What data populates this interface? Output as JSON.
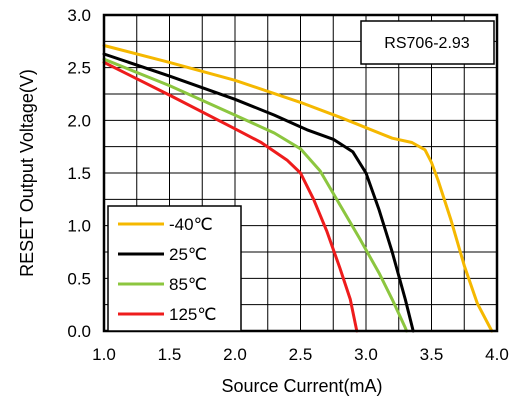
{
  "chart_data": {
    "type": "line",
    "title": "",
    "annotation": "RS706-2.93",
    "xlabel": "Source Current(mA)",
    "ylabel": "RESET Output Voltage(V)",
    "xlim": [
      1.0,
      4.0
    ],
    "ylim": [
      0.0,
      3.0
    ],
    "xticks": [
      "1.0",
      "1.5",
      "2.0",
      "2.5",
      "3.0",
      "3.5",
      "4.0"
    ],
    "yticks": [
      "0.0",
      "0.5",
      "1.0",
      "1.5",
      "2.0",
      "2.5",
      "3.0"
    ],
    "grid": true,
    "legend_position": "bottom-left",
    "series": [
      {
        "name": "-40℃",
        "color": "#f5b800",
        "points": [
          [
            1.0,
            2.71
          ],
          [
            1.5,
            2.55
          ],
          [
            2.0,
            2.38
          ],
          [
            2.5,
            2.17
          ],
          [
            2.8,
            2.03
          ],
          [
            3.0,
            1.93
          ],
          [
            3.2,
            1.83
          ],
          [
            3.35,
            1.79
          ],
          [
            3.45,
            1.72
          ],
          [
            3.5,
            1.6
          ],
          [
            3.55,
            1.43
          ],
          [
            3.65,
            1.05
          ],
          [
            3.75,
            0.62
          ],
          [
            3.85,
            0.26
          ],
          [
            3.96,
            0.0
          ]
        ]
      },
      {
        "name": "25℃",
        "color": "#000000",
        "points": [
          [
            1.0,
            2.63
          ],
          [
            1.5,
            2.42
          ],
          [
            2.0,
            2.2
          ],
          [
            2.3,
            2.05
          ],
          [
            2.55,
            1.91
          ],
          [
            2.75,
            1.82
          ],
          [
            2.9,
            1.7
          ],
          [
            3.0,
            1.5
          ],
          [
            3.1,
            1.15
          ],
          [
            3.2,
            0.75
          ],
          [
            3.3,
            0.3
          ],
          [
            3.36,
            0.0
          ]
        ]
      },
      {
        "name": "85℃",
        "color": "#8cc63f",
        "points": [
          [
            1.0,
            2.58
          ],
          [
            1.5,
            2.33
          ],
          [
            2.0,
            2.05
          ],
          [
            2.3,
            1.88
          ],
          [
            2.5,
            1.73
          ],
          [
            2.65,
            1.52
          ],
          [
            2.8,
            1.2
          ],
          [
            2.95,
            0.88
          ],
          [
            3.1,
            0.55
          ],
          [
            3.2,
            0.3
          ],
          [
            3.3,
            0.03
          ],
          [
            3.31,
            0.0
          ]
        ]
      },
      {
        "name": "125℃",
        "color": "#ee1c1c",
        "points": [
          [
            1.0,
            2.55
          ],
          [
            1.5,
            2.24
          ],
          [
            2.0,
            1.92
          ],
          [
            2.2,
            1.79
          ],
          [
            2.4,
            1.62
          ],
          [
            2.5,
            1.5
          ],
          [
            2.6,
            1.25
          ],
          [
            2.7,
            0.95
          ],
          [
            2.8,
            0.6
          ],
          [
            2.88,
            0.3
          ],
          [
            2.93,
            0.0
          ]
        ]
      }
    ]
  }
}
